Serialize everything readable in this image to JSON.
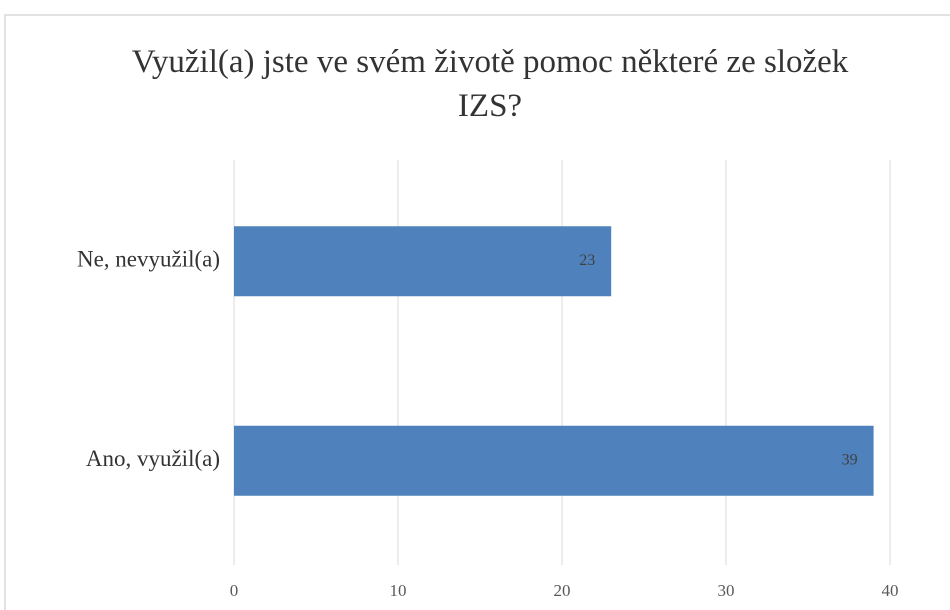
{
  "chart_data": {
    "type": "bar",
    "orientation": "horizontal",
    "title": "Využil(a) jste ve svém životě pomoc některé ze složek IZS?",
    "categories": [
      "Ne, nevyužil(a)",
      "Ano, využil(a)"
    ],
    "values": [
      23,
      39
    ],
    "color": "#4f81bd",
    "xlim": [
      0,
      40
    ],
    "xticks": [
      0,
      10,
      20,
      30,
      40
    ],
    "grid": true,
    "data_labels": true
  }
}
